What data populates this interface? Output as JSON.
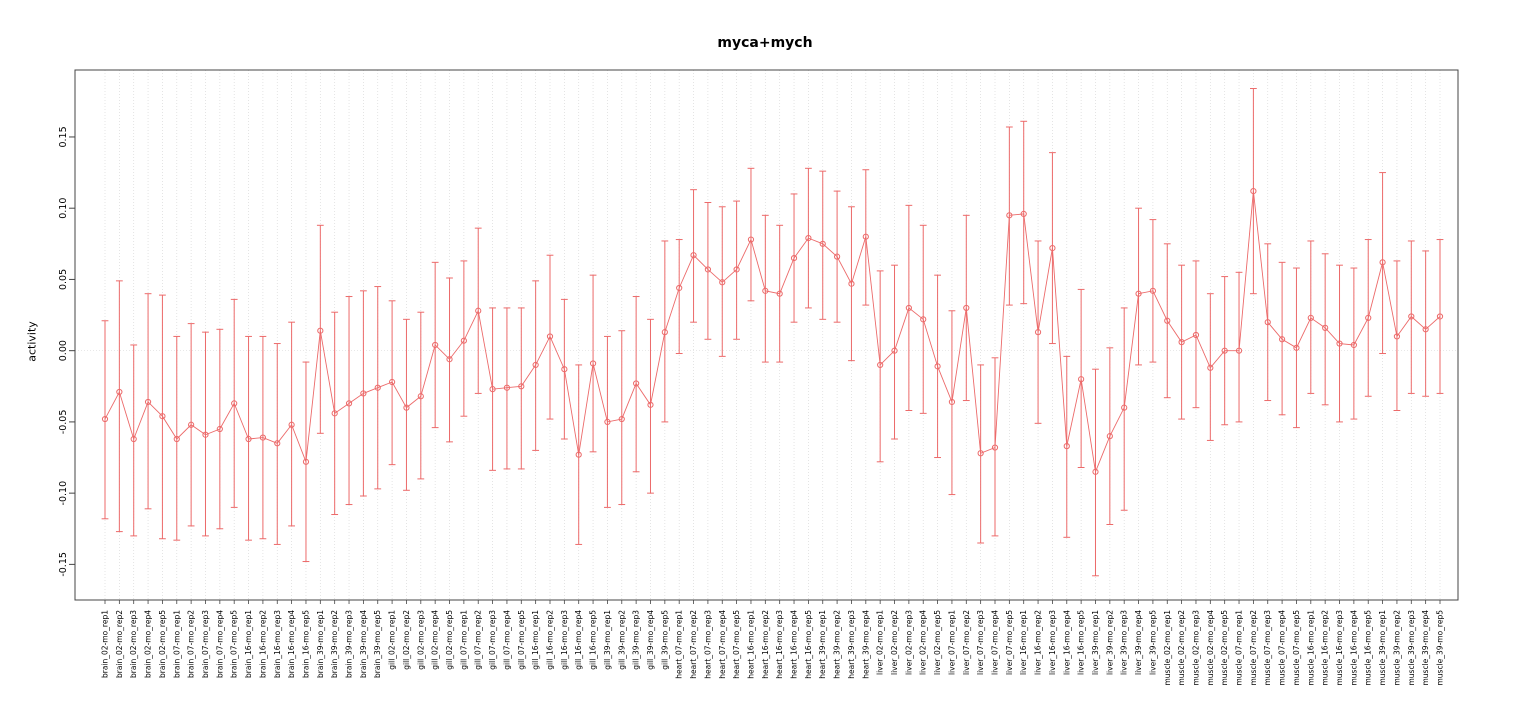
{
  "chart_data": {
    "type": "line",
    "subtype": "points-with-error-bars",
    "title": "myca+mych",
    "xlabel": "",
    "ylabel": "activity",
    "ylim": [
      -0.175,
      0.197
    ],
    "yticks": [
      -0.15,
      -0.1,
      -0.05,
      0.0,
      0.05,
      0.1,
      0.15
    ],
    "grid": "dotted vertical line at every category; dotted horizontal line at y=0",
    "legend_position": "none",
    "point_style": "open-circle",
    "point_color": "#ec6a6a",
    "grid_color": "#d9d9d9",
    "axis_color": "#444444",
    "categories": [
      "brain_02-mo_rep1",
      "brain_02-mo_rep2",
      "brain_02-mo_rep3",
      "brain_02-mo_rep4",
      "brain_02-mo_rep5",
      "brain_07-mo_rep1",
      "brain_07-mo_rep2",
      "brain_07-mo_rep3",
      "brain_07-mo_rep4",
      "brain_07-mo_rep5",
      "brain_16-mo_rep1",
      "brain_16-mo_rep2",
      "brain_16-mo_rep3",
      "brain_16-mo_rep4",
      "brain_16-mo_rep5",
      "brain_39-mo_rep1",
      "brain_39-mo_rep2",
      "brain_39-mo_rep3",
      "brain_39-mo_rep4",
      "brain_39-mo_rep5",
      "gill_02-mo_rep1",
      "gill_02-mo_rep2",
      "gill_02-mo_rep3",
      "gill_02-mo_rep4",
      "gill_02-mo_rep5",
      "gill_07-mo_rep1",
      "gill_07-mo_rep2",
      "gill_07-mo_rep3",
      "gill_07-mo_rep4",
      "gill_07-mo_rep5",
      "gill_16-mo_rep1",
      "gill_16-mo_rep2",
      "gill_16-mo_rep3",
      "gill_16-mo_rep4",
      "gill_16-mo_rep5",
      "gill_39-mo_rep1",
      "gill_39-mo_rep2",
      "gill_39-mo_rep3",
      "gill_39-mo_rep4",
      "gill_39-mo_rep5",
      "heart_07-mo_rep1",
      "heart_07-mo_rep2",
      "heart_07-mo_rep3",
      "heart_07-mo_rep4",
      "heart_07-mo_rep5",
      "heart_16-mo_rep1",
      "heart_16-mo_rep2",
      "heart_16-mo_rep3",
      "heart_16-mo_rep4",
      "heart_16-mo_rep5",
      "heart_39-mo_rep1",
      "heart_39-mo_rep2",
      "heart_39-mo_rep3",
      "heart_39-mo_rep4",
      "liver_02-mo_rep1",
      "liver_02-mo_rep2",
      "liver_02-mo_rep3",
      "liver_02-mo_rep4",
      "liver_02-mo_rep5",
      "liver_07-mo_rep1",
      "liver_07-mo_rep2",
      "liver_07-mo_rep3",
      "liver_07-mo_rep4",
      "liver_07-mo_rep5",
      "liver_16-mo_rep1",
      "liver_16-mo_rep2",
      "liver_16-mo_rep3",
      "liver_16-mo_rep4",
      "liver_16-mo_rep5",
      "liver_39-mo_rep1",
      "liver_39-mo_rep2",
      "liver_39-mo_rep3",
      "liver_39-mo_rep4",
      "liver_39-mo_rep5",
      "muscle_02-mo_rep1",
      "muscle_02-mo_rep2",
      "muscle_02-mo_rep3",
      "muscle_02-mo_rep4",
      "muscle_02-mo_rep5",
      "muscle_07-mo_rep1",
      "muscle_07-mo_rep2",
      "muscle_07-mo_rep3",
      "muscle_07-mo_rep4",
      "muscle_07-mo_rep5",
      "muscle_16-mo_rep1",
      "muscle_16-mo_rep2",
      "muscle_16-mo_rep3",
      "muscle_16-mo_rep4",
      "muscle_16-mo_rep5",
      "muscle_39-mo_rep1",
      "muscle_39-mo_rep2",
      "muscle_39-mo_rep3",
      "muscle_39-mo_rep4",
      "muscle_39-mo_rep5"
    ],
    "series": [
      {
        "name": "activity",
        "values": [
          -0.048,
          -0.029,
          -0.062,
          -0.036,
          -0.046,
          -0.062,
          -0.052,
          -0.059,
          -0.055,
          -0.037,
          -0.062,
          -0.061,
          -0.065,
          -0.052,
          -0.078,
          0.014,
          -0.044,
          -0.037,
          -0.03,
          -0.026,
          -0.022,
          -0.04,
          -0.032,
          0.004,
          -0.006,
          0.007,
          0.028,
          -0.027,
          -0.026,
          -0.025,
          -0.01,
          0.01,
          -0.013,
          -0.073,
          -0.009,
          -0.05,
          -0.048,
          -0.023,
          -0.038,
          0.013,
          0.044,
          0.067,
          0.057,
          0.048,
          0.057,
          0.078,
          0.042,
          0.04,
          0.065,
          0.079,
          0.075,
          0.066,
          0.047,
          0.08,
          -0.01,
          0.0,
          0.03,
          0.022,
          -0.011,
          -0.036,
          0.03,
          -0.072,
          -0.068,
          0.095,
          0.096,
          0.013,
          0.072,
          -0.067,
          -0.02,
          -0.085,
          -0.06,
          -0.04,
          0.04,
          0.042,
          0.021,
          0.006,
          0.011,
          -0.012,
          0.0,
          0.0,
          0.112,
          0.02,
          0.008,
          0.002,
          0.023,
          0.016,
          0.005,
          0.004,
          0.023,
          0.062,
          0.01,
          0.024,
          0.015,
          0.024
        ],
        "lower": [
          -0.118,
          -0.127,
          -0.13,
          -0.111,
          -0.132,
          -0.133,
          -0.123,
          -0.13,
          -0.125,
          -0.11,
          -0.133,
          -0.132,
          -0.136,
          -0.123,
          -0.148,
          -0.058,
          -0.115,
          -0.108,
          -0.102,
          -0.097,
          -0.08,
          -0.098,
          -0.09,
          -0.054,
          -0.064,
          -0.046,
          -0.03,
          -0.084,
          -0.083,
          -0.083,
          -0.07,
          -0.048,
          -0.062,
          -0.136,
          -0.071,
          -0.11,
          -0.108,
          -0.085,
          -0.1,
          -0.05,
          -0.002,
          0.02,
          0.008,
          -0.004,
          0.008,
          0.035,
          -0.008,
          -0.008,
          0.02,
          0.03,
          0.022,
          0.02,
          -0.007,
          0.032,
          -0.078,
          -0.062,
          -0.042,
          -0.044,
          -0.075,
          -0.101,
          -0.035,
          -0.135,
          -0.13,
          0.032,
          0.033,
          -0.051,
          0.005,
          -0.131,
          -0.082,
          -0.158,
          -0.122,
          -0.112,
          -0.01,
          -0.008,
          -0.033,
          -0.048,
          -0.04,
          -0.063,
          -0.052,
          -0.05,
          0.04,
          -0.035,
          -0.045,
          -0.054,
          -0.03,
          -0.038,
          -0.05,
          -0.048,
          -0.032,
          -0.002,
          -0.042,
          -0.03,
          -0.032,
          -0.03
        ],
        "upper": [
          0.021,
          0.049,
          0.004,
          0.04,
          0.039,
          0.01,
          0.019,
          0.013,
          0.015,
          0.036,
          0.01,
          0.01,
          0.005,
          0.02,
          -0.008,
          0.088,
          0.027,
          0.038,
          0.042,
          0.045,
          0.035,
          0.022,
          0.027,
          0.062,
          0.051,
          0.063,
          0.086,
          0.03,
          0.03,
          0.03,
          0.049,
          0.067,
          0.036,
          -0.01,
          0.053,
          0.01,
          0.014,
          0.038,
          0.022,
          0.077,
          0.078,
          0.113,
          0.104,
          0.101,
          0.105,
          0.128,
          0.095,
          0.088,
          0.11,
          0.128,
          0.126,
          0.112,
          0.101,
          0.127,
          0.056,
          0.06,
          0.102,
          0.088,
          0.053,
          0.028,
          0.095,
          -0.01,
          -0.005,
          0.157,
          0.161,
          0.077,
          0.139,
          -0.004,
          0.043,
          -0.013,
          0.002,
          0.03,
          0.1,
          0.092,
          0.075,
          0.06,
          0.063,
          0.04,
          0.052,
          0.055,
          0.184,
          0.075,
          0.062,
          0.058,
          0.077,
          0.068,
          0.06,
          0.058,
          0.078,
          0.125,
          0.063,
          0.077,
          0.07,
          0.078
        ]
      }
    ]
  }
}
